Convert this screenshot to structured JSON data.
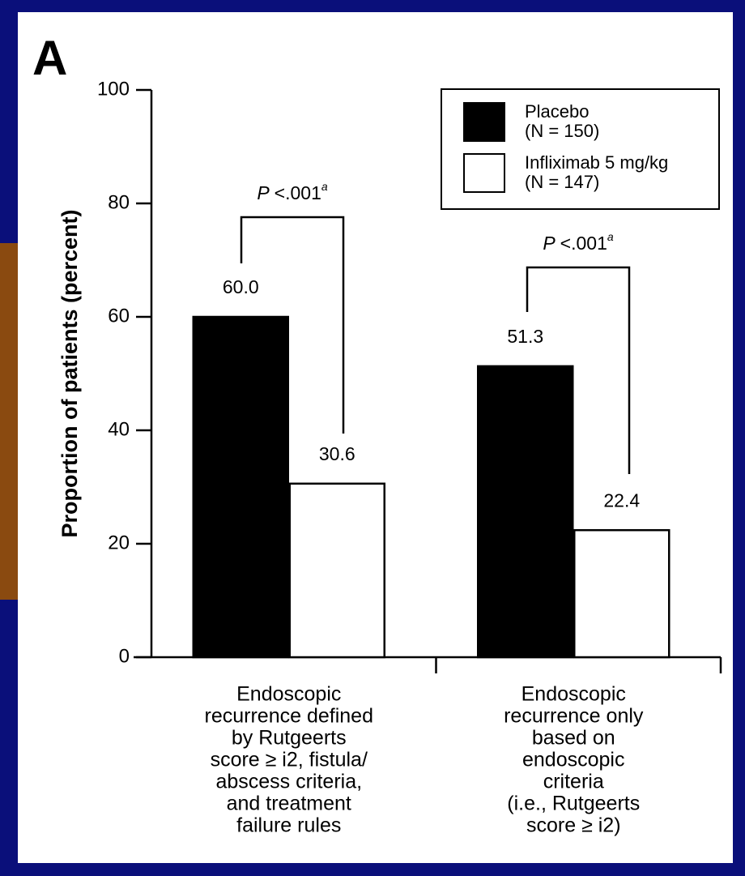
{
  "chart_data": {
    "type": "bar",
    "panel_label": "A",
    "y_label": "Proportion of patients (percent)",
    "categories": [
      [
        "Endoscopic",
        "recurrence defined",
        "by Rutgeerts",
        "score ≥ i2, fistula/",
        "abscess criteria,",
        "and treatment",
        "failure rules"
      ],
      [
        "Endoscopic",
        "recurrence only",
        "based on",
        "endoscopic",
        "criteria",
        "(i.e., Rutgeerts",
        "score ≥ i2)"
      ]
    ],
    "series": [
      {
        "name": "Placebo",
        "n_label": "(N = 150)",
        "color": "#000000",
        "values": [
          60.0,
          51.3
        ],
        "value_labels": [
          "60.0",
          "51.3"
        ]
      },
      {
        "name": "Infliximab 5 mg/kg",
        "n_label": "(N = 147)",
        "color": "#ffffff",
        "values": [
          30.6,
          22.4
        ],
        "value_labels": [
          "30.6",
          "22.4"
        ]
      }
    ],
    "annotations": [
      {
        "italic": "P",
        "text": "<.001",
        "superscript": "a"
      },
      {
        "italic": "P",
        "text": "<.001",
        "superscript": "a"
      }
    ],
    "ylim": [
      0,
      100
    ],
    "yticks": [
      0,
      20,
      40,
      60,
      80,
      100
    ],
    "legend": "upper right"
  }
}
